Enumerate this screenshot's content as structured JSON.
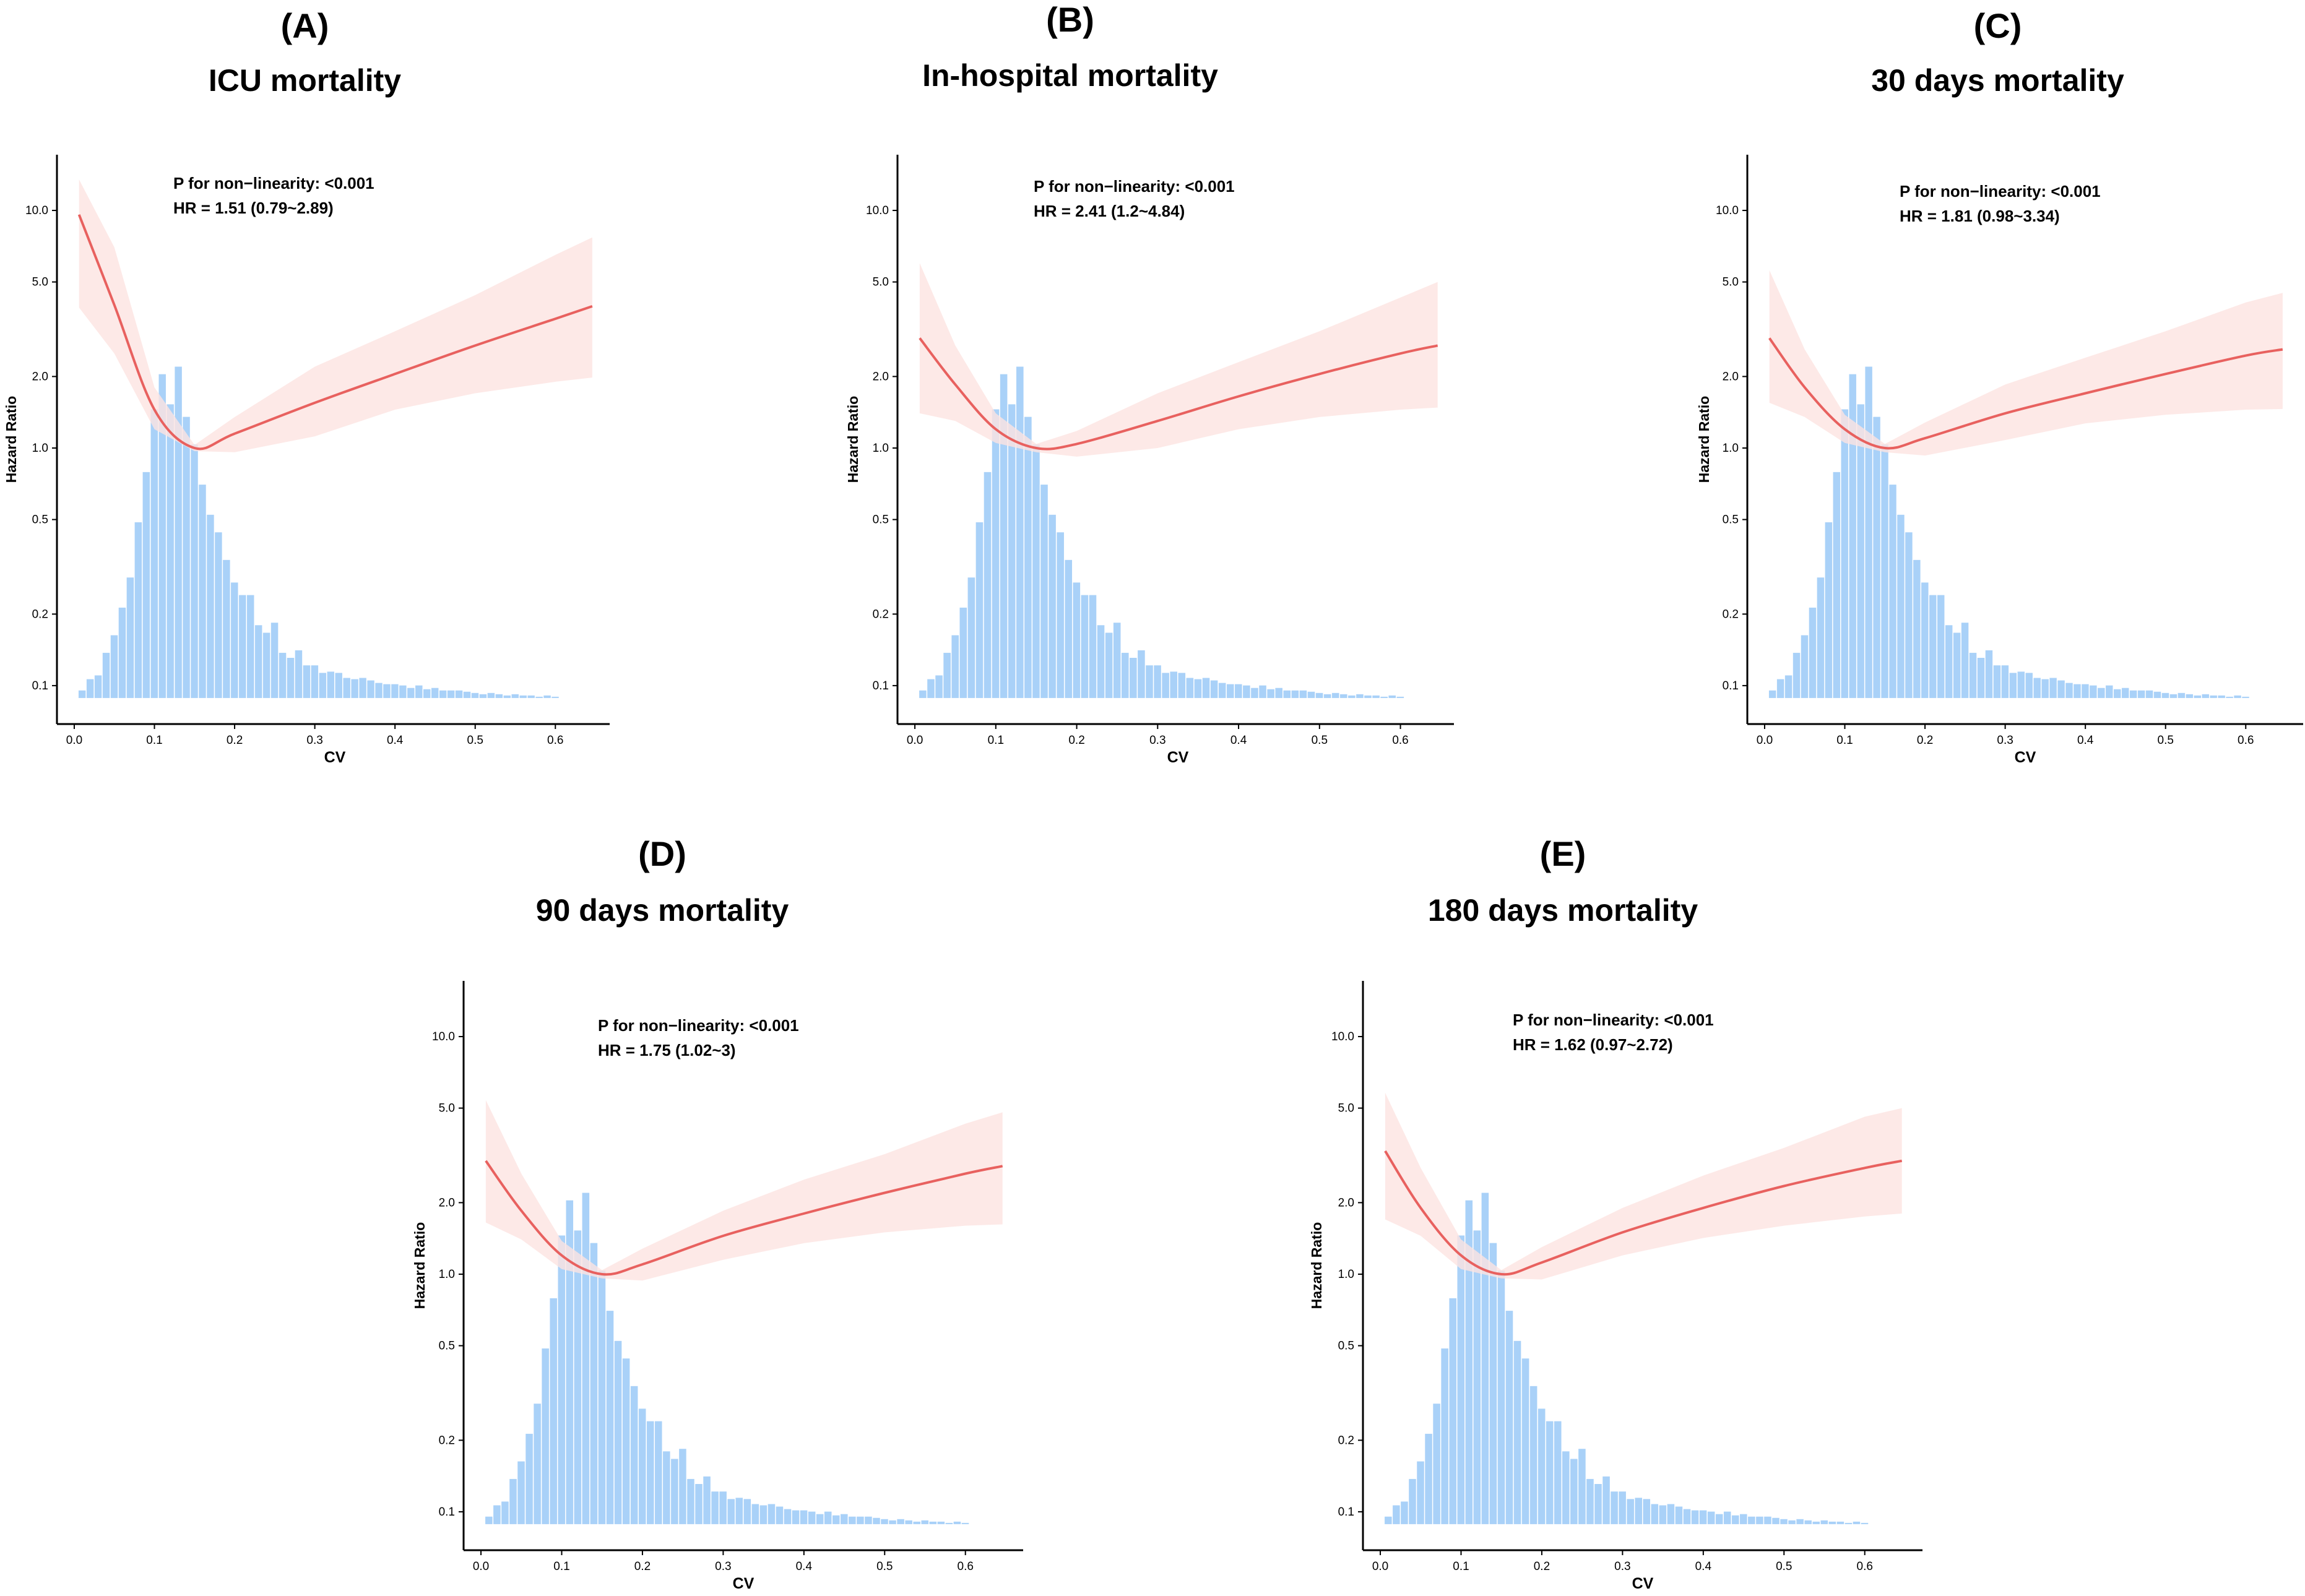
{
  "figure": {
    "y_axis_label": "Hazard Ratio",
    "x_axis_label": "CV",
    "y_ticks": [
      0.1,
      0.2,
      0.5,
      1.0,
      2.0,
      5.0,
      10.0
    ],
    "y_tick_labels": [
      "0.1",
      "0.2",
      "0.5",
      "1.0",
      "2.0",
      "5.0",
      "10.0"
    ],
    "x_ticks": [
      0.0,
      0.1,
      0.2,
      0.3,
      0.4,
      0.5,
      0.6
    ],
    "x_tick_labels": [
      "0.0",
      "0.1",
      "0.2",
      "0.3",
      "0.4",
      "0.5",
      "0.6"
    ],
    "colors": {
      "curve": "#e8615f",
      "band": "#fde3e1",
      "bars": "#a9d1f8",
      "axis": "#000000"
    }
  },
  "chart_data": [
    {
      "type": "line",
      "panel": "(A)",
      "title": "ICU mortality",
      "xlabel": "CV",
      "ylabel": "Hazard Ratio",
      "xlim": [
        -0.01,
        0.66
      ],
      "ylim": [
        0.085,
        13.5
      ],
      "y_scale": "log",
      "annotation_p": "P for non−linearity: <0.001",
      "annotation_hr": "HR = 1.51 (0.79~2.89)",
      "curve": {
        "x": [
          0.006,
          0.05,
          0.1,
          0.15,
          0.2,
          0.3,
          0.4,
          0.5,
          0.6,
          0.646
        ],
        "hr": [
          9.6,
          4.0,
          1.45,
          1.0,
          1.15,
          1.55,
          2.05,
          2.7,
          3.5,
          3.95
        ]
      },
      "ci_lower": {
        "x": [
          0.006,
          0.05,
          0.1,
          0.15,
          0.2,
          0.3,
          0.4,
          0.5,
          0.6,
          0.646
        ],
        "hr": [
          3.9,
          2.5,
          1.2,
          0.97,
          0.96,
          1.12,
          1.45,
          1.7,
          1.9,
          1.98
        ]
      },
      "ci_upper": {
        "x": [
          0.006,
          0.05,
          0.1,
          0.15,
          0.2,
          0.3,
          0.4,
          0.5,
          0.6,
          0.646
        ],
        "hr": [
          13.5,
          7.0,
          1.8,
          1.03,
          1.35,
          2.2,
          3.1,
          4.4,
          6.5,
          7.7
        ]
      },
      "histogram": {
        "bin_start": 0.005,
        "bin_width": 0.01,
        "counts": [
          3.0,
          7.5,
          9.0,
          18.0,
          25.0,
          36.0,
          48.0,
          70.0,
          90.0,
          115.0,
          129.0,
          117.0,
          132.0,
          112.0,
          101.0,
          85.0,
          73.0,
          66.0,
          55.0,
          46.0,
          41.0,
          41.0,
          29.0,
          26.0,
          30.0,
          18.0,
          16.0,
          19.0,
          13.0,
          13.0,
          10.0,
          10.5,
          10.0,
          8.0,
          7.5,
          8.0,
          7.0,
          6.0,
          5.5,
          5.5,
          5.0,
          4.0,
          5.0,
          3.5,
          4.0,
          3.0,
          3.0,
          3.0,
          2.5,
          2.0,
          1.5,
          2.0,
          1.5,
          1.0,
          1.5,
          1.0,
          1.0,
          0.5,
          1.0,
          0.5
        ]
      }
    },
    {
      "type": "line",
      "panel": "(B)",
      "title": "In-hospital mortality",
      "xlabel": "CV",
      "ylabel": "Hazard Ratio",
      "xlim": [
        -0.01,
        0.66
      ],
      "ylim": [
        0.085,
        13.5
      ],
      "y_scale": "log",
      "annotation_p": "P for non−linearity: <0.001",
      "annotation_hr": "HR = 2.41 (1.2~4.84)",
      "curve": {
        "x": [
          0.006,
          0.05,
          0.1,
          0.15,
          0.2,
          0.3,
          0.4,
          0.5,
          0.6,
          0.646
        ],
        "hr": [
          2.9,
          1.85,
          1.2,
          1.0,
          1.04,
          1.3,
          1.65,
          2.05,
          2.5,
          2.7
        ]
      },
      "ci_lower": {
        "x": [
          0.006,
          0.05,
          0.1,
          0.15,
          0.2,
          0.3,
          0.4,
          0.5,
          0.6,
          0.646
        ],
        "hr": [
          1.4,
          1.3,
          1.05,
          0.96,
          0.92,
          1.0,
          1.2,
          1.35,
          1.45,
          1.48
        ]
      },
      "ci_upper": {
        "x": [
          0.006,
          0.05,
          0.1,
          0.15,
          0.2,
          0.3,
          0.4,
          0.5,
          0.6,
          0.646
        ],
        "hr": [
          6.0,
          2.7,
          1.4,
          1.04,
          1.18,
          1.7,
          2.3,
          3.1,
          4.3,
          5.0
        ]
      },
      "histogram": {
        "bin_start": 0.005,
        "bin_width": 0.01,
        "counts": [
          3.0,
          7.5,
          9.0,
          18.0,
          25.0,
          36.0,
          48.0,
          70.0,
          90.0,
          115.0,
          129.0,
          117.0,
          132.0,
          112.0,
          101.0,
          85.0,
          73.0,
          66.0,
          55.0,
          46.0,
          41.0,
          41.0,
          29.0,
          26.0,
          30.0,
          18.0,
          16.0,
          19.0,
          13.0,
          13.0,
          10.0,
          10.5,
          10.0,
          8.0,
          7.5,
          8.0,
          7.0,
          6.0,
          5.5,
          5.5,
          5.0,
          4.0,
          5.0,
          3.5,
          4.0,
          3.0,
          3.0,
          3.0,
          2.5,
          2.0,
          1.5,
          2.0,
          1.5,
          1.0,
          1.5,
          1.0,
          1.0,
          0.5,
          1.0,
          0.5
        ]
      }
    },
    {
      "type": "line",
      "panel": "(C)",
      "title": "30 days mortality",
      "xlabel": "CV",
      "ylabel": "Hazard Ratio",
      "xlim": [
        -0.01,
        0.66
      ],
      "ylim": [
        0.085,
        13.5
      ],
      "y_scale": "log",
      "annotation_p": "P for non−linearity: <0.001",
      "annotation_hr": "HR = 1.81 (0.98~3.34)",
      "curve": {
        "x": [
          0.006,
          0.05,
          0.1,
          0.15,
          0.2,
          0.3,
          0.4,
          0.5,
          0.6,
          0.646
        ],
        "hr": [
          2.9,
          1.8,
          1.2,
          1.0,
          1.1,
          1.4,
          1.7,
          2.05,
          2.45,
          2.6
        ]
      },
      "ci_lower": {
        "x": [
          0.006,
          0.05,
          0.1,
          0.15,
          0.2,
          0.3,
          0.4,
          0.5,
          0.6,
          0.646
        ],
        "hr": [
          1.55,
          1.35,
          1.05,
          0.96,
          0.93,
          1.08,
          1.27,
          1.38,
          1.45,
          1.46
        ]
      },
      "ci_upper": {
        "x": [
          0.006,
          0.05,
          0.1,
          0.15,
          0.2,
          0.3,
          0.4,
          0.5,
          0.6,
          0.646
        ],
        "hr": [
          5.6,
          2.6,
          1.38,
          1.04,
          1.28,
          1.85,
          2.4,
          3.1,
          4.1,
          4.5
        ]
      },
      "histogram": {
        "bin_start": 0.005,
        "bin_width": 0.01,
        "counts": [
          3.0,
          7.5,
          9.0,
          18.0,
          25.0,
          36.0,
          48.0,
          70.0,
          90.0,
          115.0,
          129.0,
          117.0,
          132.0,
          112.0,
          101.0,
          85.0,
          73.0,
          66.0,
          55.0,
          46.0,
          41.0,
          41.0,
          29.0,
          26.0,
          30.0,
          18.0,
          16.0,
          19.0,
          13.0,
          13.0,
          10.0,
          10.5,
          10.0,
          8.0,
          7.5,
          8.0,
          7.0,
          6.0,
          5.5,
          5.5,
          5.0,
          4.0,
          5.0,
          3.5,
          4.0,
          3.0,
          3.0,
          3.0,
          2.5,
          2.0,
          1.5,
          2.0,
          1.5,
          1.0,
          1.5,
          1.0,
          1.0,
          0.5,
          1.0,
          0.5
        ]
      }
    },
    {
      "type": "line",
      "panel": "(D)",
      "title": "90 days mortality",
      "xlabel": "CV",
      "ylabel": "Hazard Ratio",
      "xlim": [
        -0.01,
        0.66
      ],
      "ylim": [
        0.085,
        13.5
      ],
      "y_scale": "log",
      "annotation_p": "P for non−linearity: <0.001",
      "annotation_hr": "HR = 1.75 (1.02~3)",
      "curve": {
        "x": [
          0.006,
          0.05,
          0.1,
          0.15,
          0.2,
          0.3,
          0.4,
          0.5,
          0.6,
          0.646
        ],
        "hr": [
          3.0,
          1.85,
          1.2,
          1.0,
          1.1,
          1.45,
          1.8,
          2.2,
          2.65,
          2.85
        ]
      },
      "ci_lower": {
        "x": [
          0.006,
          0.05,
          0.1,
          0.15,
          0.2,
          0.3,
          0.4,
          0.5,
          0.6,
          0.646
        ],
        "hr": [
          1.65,
          1.4,
          1.05,
          0.96,
          0.94,
          1.15,
          1.35,
          1.5,
          1.6,
          1.62
        ]
      },
      "ci_upper": {
        "x": [
          0.006,
          0.05,
          0.1,
          0.15,
          0.2,
          0.3,
          0.4,
          0.5,
          0.6,
          0.646
        ],
        "hr": [
          5.4,
          2.65,
          1.38,
          1.04,
          1.28,
          1.85,
          2.5,
          3.2,
          4.3,
          4.8
        ]
      },
      "histogram": {
        "bin_start": 0.005,
        "bin_width": 0.01,
        "counts": [
          3.0,
          7.5,
          9.0,
          18.0,
          25.0,
          36.0,
          48.0,
          70.0,
          90.0,
          115.0,
          129.0,
          117.0,
          132.0,
          112.0,
          101.0,
          85.0,
          73.0,
          66.0,
          55.0,
          46.0,
          41.0,
          41.0,
          29.0,
          26.0,
          30.0,
          18.0,
          16.0,
          19.0,
          13.0,
          13.0,
          10.0,
          10.5,
          10.0,
          8.0,
          7.5,
          8.0,
          7.0,
          6.0,
          5.5,
          5.5,
          5.0,
          4.0,
          5.0,
          3.5,
          4.0,
          3.0,
          3.0,
          3.0,
          2.5,
          2.0,
          1.5,
          2.0,
          1.5,
          1.0,
          1.5,
          1.0,
          1.0,
          0.5,
          1.0,
          0.5
        ]
      }
    },
    {
      "type": "line",
      "panel": "(E)",
      "title": "180 days mortality",
      "xlabel": "CV",
      "ylabel": "Hazard Ratio",
      "xlim": [
        -0.01,
        0.66
      ],
      "ylim": [
        0.085,
        13.5
      ],
      "y_scale": "log",
      "annotation_p": "P for non−linearity: <0.001",
      "annotation_hr": "HR = 1.62 (0.97~2.72)",
      "curve": {
        "x": [
          0.006,
          0.05,
          0.1,
          0.15,
          0.2,
          0.3,
          0.4,
          0.5,
          0.6,
          0.646
        ],
        "hr": [
          3.3,
          1.9,
          1.2,
          1.0,
          1.12,
          1.5,
          1.9,
          2.35,
          2.8,
          3.0
        ]
      },
      "ci_lower": {
        "x": [
          0.006,
          0.05,
          0.1,
          0.15,
          0.2,
          0.3,
          0.4,
          0.5,
          0.6,
          0.646
        ],
        "hr": [
          1.7,
          1.45,
          1.05,
          0.96,
          0.95,
          1.2,
          1.42,
          1.6,
          1.75,
          1.8
        ]
      },
      "ci_upper": {
        "x": [
          0.006,
          0.05,
          0.1,
          0.15,
          0.2,
          0.3,
          0.4,
          0.5,
          0.6,
          0.646
        ],
        "hr": [
          5.8,
          2.8,
          1.4,
          1.04,
          1.3,
          1.9,
          2.6,
          3.4,
          4.6,
          5.0
        ]
      },
      "histogram": {
        "bin_start": 0.005,
        "bin_width": 0.01,
        "counts": [
          3.0,
          7.5,
          9.0,
          18.0,
          25.0,
          36.0,
          48.0,
          70.0,
          90.0,
          115.0,
          129.0,
          117.0,
          132.0,
          112.0,
          101.0,
          85.0,
          73.0,
          66.0,
          55.0,
          46.0,
          41.0,
          41.0,
          29.0,
          26.0,
          30.0,
          18.0,
          16.0,
          19.0,
          13.0,
          13.0,
          10.0,
          10.5,
          10.0,
          8.0,
          7.5,
          8.0,
          7.0,
          6.0,
          5.5,
          5.5,
          5.0,
          4.0,
          5.0,
          3.5,
          4.0,
          3.0,
          3.0,
          3.0,
          2.5,
          2.0,
          1.5,
          2.0,
          1.5,
          1.0,
          1.5,
          1.0,
          1.0,
          0.5,
          1.0,
          0.5
        ]
      }
    }
  ]
}
